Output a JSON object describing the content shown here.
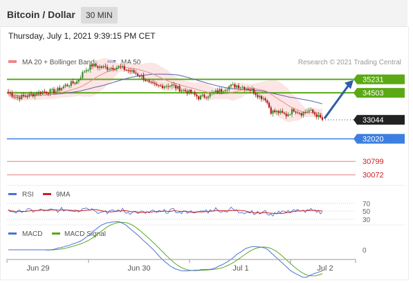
{
  "header": {
    "title": "Bitcoin / Dollar",
    "timeframe": "30 MIN"
  },
  "datetime": "Thursday, July 1, 2021 9:39:15 PM CET",
  "colors": {
    "bull_candle": "#3d8a2a",
    "bear_candle": "#b01a1a",
    "ma20": "#ee8a8a",
    "bollinger_fill": "#fbdcdc",
    "ma50": "#5b5fae",
    "resistance": "#5aa915",
    "support_blue": "#3c7fe0",
    "support_red": "#dd4444",
    "rsi": "#4a6fd8",
    "rsi_ma": "#cc1f1f",
    "macd": "#4a6fd8",
    "macd_signal": "#58a81c",
    "current_price_box": "#222222"
  },
  "chart_data": {
    "type": "line",
    "legend": [
      {
        "name": "MA 20 + Bollinger Bands",
        "color": "#f0868a"
      },
      {
        "name": "MA 50",
        "color": "#2c5c99"
      }
    ],
    "credit": "Research © 2021 Trading Central",
    "x_ticks": [
      "Jun 29",
      "Jun 30",
      "Jul 1",
      "Jul 2"
    ],
    "ylim": [
      29500,
      37200
    ],
    "price_levels": [
      {
        "value": 35231,
        "label": "35231",
        "style": "green"
      },
      {
        "value": 34503,
        "label": "34503",
        "style": "green"
      },
      {
        "value": 33044,
        "label": "33044",
        "style": "dark"
      },
      {
        "value": 32020,
        "label": "32020",
        "style": "blue"
      },
      {
        "value": 30799,
        "label": "30799",
        "style": "red"
      },
      {
        "value": 30072,
        "label": "30072",
        "style": "red"
      }
    ],
    "close_keypoints": [
      [
        0,
        34500
      ],
      [
        5,
        34250
      ],
      [
        12,
        34400
      ],
      [
        18,
        34550
      ],
      [
        25,
        34600
      ],
      [
        30,
        34900
      ],
      [
        36,
        35100
      ],
      [
        40,
        35700
      ],
      [
        44,
        36000
      ],
      [
        48,
        35900
      ],
      [
        52,
        35850
      ],
      [
        58,
        35900
      ],
      [
        62,
        35750
      ],
      [
        66,
        35600
      ],
      [
        70,
        35400
      ],
      [
        74,
        35000
      ],
      [
        78,
        34850
      ],
      [
        82,
        34900
      ],
      [
        86,
        34900
      ],
      [
        90,
        34700
      ],
      [
        96,
        34500
      ],
      [
        100,
        34250
      ],
      [
        104,
        34350
      ],
      [
        108,
        34500
      ],
      [
        112,
        34650
      ],
      [
        116,
        34850
      ],
      [
        120,
        34900
      ],
      [
        124,
        34800
      ],
      [
        128,
        34650
      ],
      [
        132,
        34300
      ],
      [
        135,
        34200
      ],
      [
        138,
        33500
      ],
      [
        142,
        33450
      ],
      [
        146,
        33300
      ],
      [
        150,
        33600
      ],
      [
        154,
        33400
      ],
      [
        158,
        33550
      ],
      [
        162,
        33300
      ],
      [
        165,
        33044
      ]
    ],
    "forecast": {
      "from": 33044,
      "to": 35231
    },
    "rsi": {
      "legend": [
        "RSI",
        "9MA"
      ],
      "levels": [
        70,
        50,
        30
      ]
    },
    "macd": {
      "legend": [
        "MACD",
        "MACD Signal"
      ],
      "zero_label": "0"
    }
  }
}
